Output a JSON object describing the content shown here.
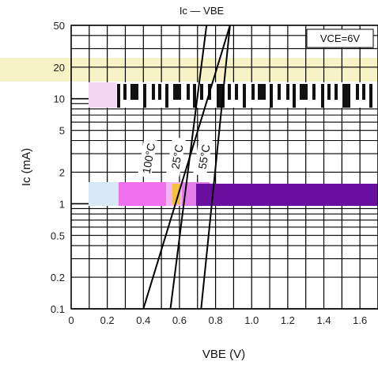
{
  "chart_data": {
    "type": "line",
    "title": "Ic — VBE",
    "xlabel": "VBE (V)",
    "ylabel": "Ic (mA)",
    "xlim": [
      0,
      1.7
    ],
    "ylim": [
      0.1,
      50
    ],
    "yscale": "log",
    "grid": true,
    "x_ticks": [
      "0",
      "0.2",
      "0.4",
      "0.6",
      "0.8",
      "1.0",
      "1.2",
      "1.4",
      "1.6"
    ],
    "y_ticks": [
      "0.1",
      "0.2",
      "0.5",
      "1",
      "2",
      "5",
      "10",
      "20",
      "50"
    ],
    "annotation": "VCE=6V",
    "series": [
      {
        "name": "100°C",
        "x": [
          0.4,
          0.88
        ],
        "y": [
          0.1,
          50
        ]
      },
      {
        "name": "25°C",
        "x": [
          0.55,
          0.75
        ],
        "y": [
          0.1,
          50
        ]
      },
      {
        "name": "55°C",
        "x": [
          0.72,
          0.88
        ],
        "y": [
          0.1,
          50
        ]
      }
    ]
  }
}
